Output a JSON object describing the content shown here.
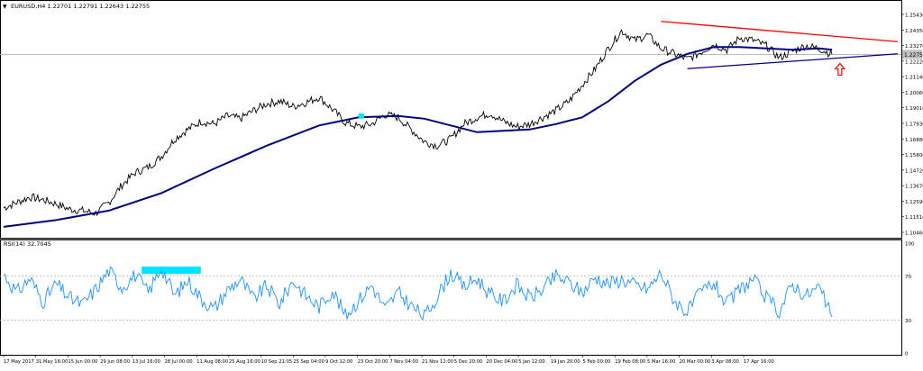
{
  "header": {
    "symbol_line": "EURUSD,H4  1.22701 1.22791 1.22643 1.22755"
  },
  "rsi_panel": {
    "label": "RSI(14) 32.7045"
  },
  "current_price_label": "1.22755",
  "colors": {
    "price": "#000000",
    "ma": "#000080",
    "upper_trend": "#ff0000",
    "lower_trend": "#00008b",
    "rsi": "#1e90ff",
    "highlight": "#00e5ff",
    "arrow": "#ff0000",
    "grid_line": "#b0b0b0"
  },
  "chart_data": [
    {
      "type": "line",
      "name": "price-panel",
      "ylim": [
        1.0946,
        1.2585
      ],
      "price_ticks": [
        "1.25430",
        "1.24350",
        "1.23270",
        "1.22220",
        "1.21140",
        "1.20060",
        "1.19010",
        "1.17930",
        "1.16880",
        "1.15800",
        "1.14720",
        "1.13670",
        "1.12590",
        "1.11510",
        "1.10460"
      ],
      "x_ticks": [
        "17 May 2017",
        "31 May 16:00",
        "15 Jun 00:00",
        "29 Jun 08:00",
        "13 Jul 16:00",
        "28 Jul 00:00",
        "11 Aug 08:00",
        "25 Aug 16:00",
        "10 Sep 21:05",
        "25 Sep 04:00",
        "9 Oct 12:00",
        "23 Oct 20:00",
        "7 Nov 04:00",
        "21 Nov 12:00",
        "5 Dec 20:00",
        "20 Dec 04:00",
        "5 Jan 12:00",
        "19 Jan 20:00",
        "5 Feb 00:00",
        "19 Feb 08:00",
        "5 Mar 16:00",
        "20 Mar 00:00",
        "3 Apr 08:00",
        "17 Apr 16:00"
      ],
      "price_path": [
        [
          0,
          1.114
        ],
        [
          1,
          1.118
        ],
        [
          2,
          1.122
        ],
        [
          3,
          1.12
        ],
        [
          4,
          1.117
        ],
        [
          5,
          1.113
        ],
        [
          6,
          1.112
        ],
        [
          7,
          1.11
        ],
        [
          8,
          1.118
        ],
        [
          9,
          1.131
        ],
        [
          10,
          1.14
        ],
        [
          11,
          1.144
        ],
        [
          12,
          1.152
        ],
        [
          13,
          1.165
        ],
        [
          14,
          1.172
        ],
        [
          15,
          1.178
        ],
        [
          16,
          1.176
        ],
        [
          17,
          1.182
        ],
        [
          18,
          1.18
        ],
        [
          19,
          1.186
        ],
        [
          20,
          1.191
        ],
        [
          21,
          1.193
        ],
        [
          22,
          1.189
        ],
        [
          23,
          1.192
        ],
        [
          24,
          1.196
        ],
        [
          25,
          1.187
        ],
        [
          26,
          1.177
        ],
        [
          27,
          1.174
        ],
        [
          28,
          1.176
        ],
        [
          29,
          1.183
        ],
        [
          30,
          1.181
        ],
        [
          31,
          1.172
        ],
        [
          32,
          1.163
        ],
        [
          33,
          1.16
        ],
        [
          34,
          1.165
        ],
        [
          35,
          1.176
        ],
        [
          36,
          1.181
        ],
        [
          37,
          1.184
        ],
        [
          38,
          1.178
        ],
        [
          39,
          1.174
        ],
        [
          40,
          1.176
        ],
        [
          41,
          1.181
        ],
        [
          42,
          1.186
        ],
        [
          43,
          1.193
        ],
        [
          44,
          1.205
        ],
        [
          45,
          1.217
        ],
        [
          46,
          1.232
        ],
        [
          47,
          1.245
        ],
        [
          48,
          1.238
        ],
        [
          49,
          1.242
        ],
        [
          50,
          1.232
        ],
        [
          51,
          1.228
        ],
        [
          52,
          1.224
        ],
        [
          53,
          1.229
        ],
        [
          54,
          1.235
        ],
        [
          55,
          1.231
        ],
        [
          56,
          1.24
        ],
        [
          57,
          1.238
        ],
        [
          58,
          1.234
        ],
        [
          59,
          1.225
        ],
        [
          60,
          1.23
        ],
        [
          61,
          1.234
        ],
        [
          62,
          1.232
        ],
        [
          63,
          1.2276
        ]
      ],
      "ma_path": [
        [
          0,
          1.1
        ],
        [
          4,
          1.105
        ],
        [
          8,
          1.112
        ],
        [
          12,
          1.125
        ],
        [
          16,
          1.143
        ],
        [
          20,
          1.16
        ],
        [
          24,
          1.175
        ],
        [
          27,
          1.181
        ],
        [
          30,
          1.182
        ],
        [
          32,
          1.18
        ],
        [
          34,
          1.175
        ],
        [
          36,
          1.17
        ],
        [
          38,
          1.171
        ],
        [
          40,
          1.172
        ],
        [
          42,
          1.176
        ],
        [
          44,
          1.181
        ],
        [
          46,
          1.193
        ],
        [
          48,
          1.208
        ],
        [
          50,
          1.22
        ],
        [
          52,
          1.228
        ],
        [
          54,
          1.233
        ],
        [
          56,
          1.233
        ],
        [
          58,
          1.232
        ],
        [
          60,
          1.231
        ],
        [
          62,
          1.232
        ],
        [
          63,
          1.231
        ]
      ],
      "trendlines": [
        {
          "name": "upper-resistance",
          "points": [
            [
              50,
              1.252
            ],
            [
              68,
              1.237
            ]
          ]
        },
        {
          "name": "lower-support",
          "points": [
            [
              52,
              1.217
            ],
            [
              68,
              1.228
            ]
          ]
        }
      ],
      "current_price": 1.22755,
      "ma_label_marker": [
        27.2,
        1.182
      ]
    },
    {
      "type": "line",
      "name": "rsi-panel",
      "ylim": [
        0,
        100
      ],
      "levels": [
        70,
        30
      ],
      "ticks": [
        "100",
        "70",
        "30",
        "0"
      ],
      "rsi_path": [
        [
          0,
          72
        ],
        [
          1,
          55
        ],
        [
          2,
          68
        ],
        [
          3,
          47
        ],
        [
          4,
          63
        ],
        [
          5,
          50
        ],
        [
          6,
          44
        ],
        [
          7,
          58
        ],
        [
          8,
          75
        ],
        [
          9,
          60
        ],
        [
          10,
          71
        ],
        [
          11,
          55
        ],
        [
          12,
          78
        ],
        [
          13,
          52
        ],
        [
          14,
          66
        ],
        [
          15,
          50
        ],
        [
          16,
          40
        ],
        [
          17,
          57
        ],
        [
          18,
          67
        ],
        [
          19,
          49
        ],
        [
          20,
          61
        ],
        [
          21,
          45
        ],
        [
          22,
          66
        ],
        [
          23,
          52
        ],
        [
          24,
          42
        ],
        [
          25,
          57
        ],
        [
          26,
          34
        ],
        [
          27,
          48
        ],
        [
          28,
          62
        ],
        [
          29,
          40
        ],
        [
          30,
          55
        ],
        [
          31,
          43
        ],
        [
          32,
          33
        ],
        [
          33,
          52
        ],
        [
          34,
          73
        ],
        [
          35,
          60
        ],
        [
          36,
          68
        ],
        [
          37,
          53
        ],
        [
          38,
          47
        ],
        [
          39,
          62
        ],
        [
          40,
          50
        ],
        [
          41,
          58
        ],
        [
          42,
          70
        ],
        [
          43,
          64
        ],
        [
          44,
          55
        ],
        [
          45,
          69
        ],
        [
          46,
          63
        ],
        [
          47,
          67
        ],
        [
          48,
          62
        ],
        [
          49,
          58
        ],
        [
          50,
          73
        ],
        [
          51,
          48
        ],
        [
          52,
          37
        ],
        [
          53,
          55
        ],
        [
          54,
          64
        ],
        [
          55,
          44
        ],
        [
          56,
          58
        ],
        [
          57,
          67
        ],
        [
          58,
          50
        ],
        [
          59,
          38
        ],
        [
          60,
          63
        ],
        [
          61,
          52
        ],
        [
          62,
          60
        ],
        [
          63,
          32.7
        ]
      ],
      "highlight_range": [
        10.5,
        15
      ]
    }
  ]
}
